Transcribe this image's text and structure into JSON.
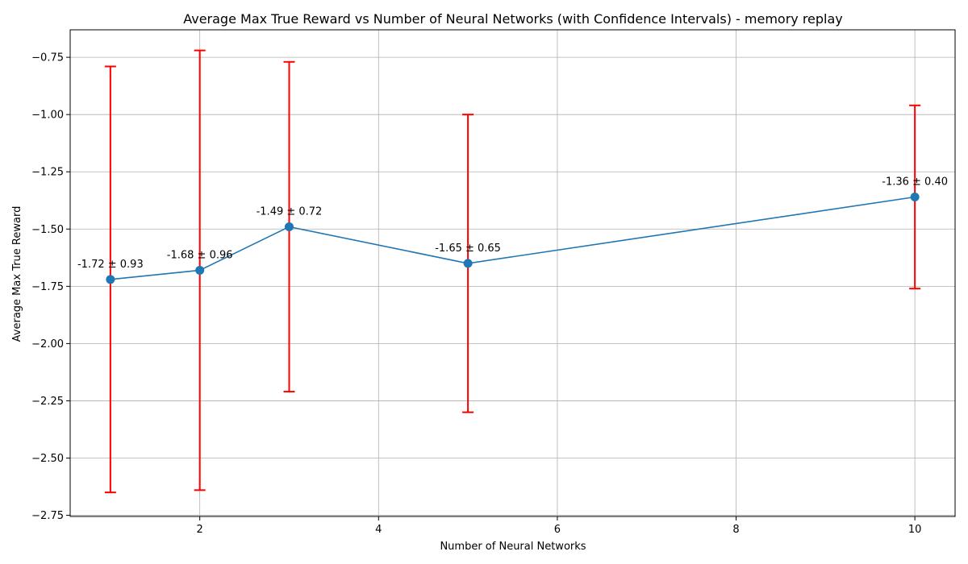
{
  "chart_data": {
    "type": "line",
    "title": "Average Max True Reward vs Number of Neural Networks (with Confidence Intervals) - memory replay",
    "xlabel": "Number of Neural Networks",
    "ylabel": "Average Max True Reward",
    "xlim": [
      0.55,
      10.45
    ],
    "ylim": [
      -2.755,
      -0.63
    ],
    "xticks": [
      2,
      4,
      6,
      8,
      10
    ],
    "yticks": [
      -2.75,
      -2.5,
      -2.25,
      -2.0,
      -1.75,
      -1.5,
      -1.25,
      -1.0,
      -0.75
    ],
    "xtick_labels": [
      "2",
      "4",
      "6",
      "8",
      "10"
    ],
    "ytick_labels": [
      "−2.75",
      "−2.50",
      "−2.25",
      "−2.00",
      "−1.75",
      "−1.50",
      "−1.25",
      "−1.00",
      "−0.75"
    ],
    "grid": true,
    "series": [
      {
        "x": [
          1,
          2,
          3,
          5,
          10
        ],
        "y": [
          -1.72,
          -1.68,
          -1.49,
          -1.65,
          -1.36
        ],
        "err": [
          0.93,
          0.96,
          0.72,
          0.65,
          0.4
        ],
        "labels": [
          "-1.72 ± 0.93",
          "-1.68 ± 0.96",
          "-1.49 ± 0.72",
          "-1.65 ± 0.65",
          "-1.36 ± 0.40"
        ],
        "line_color": "#1f77b4",
        "error_color": "#ff0000"
      }
    ]
  }
}
